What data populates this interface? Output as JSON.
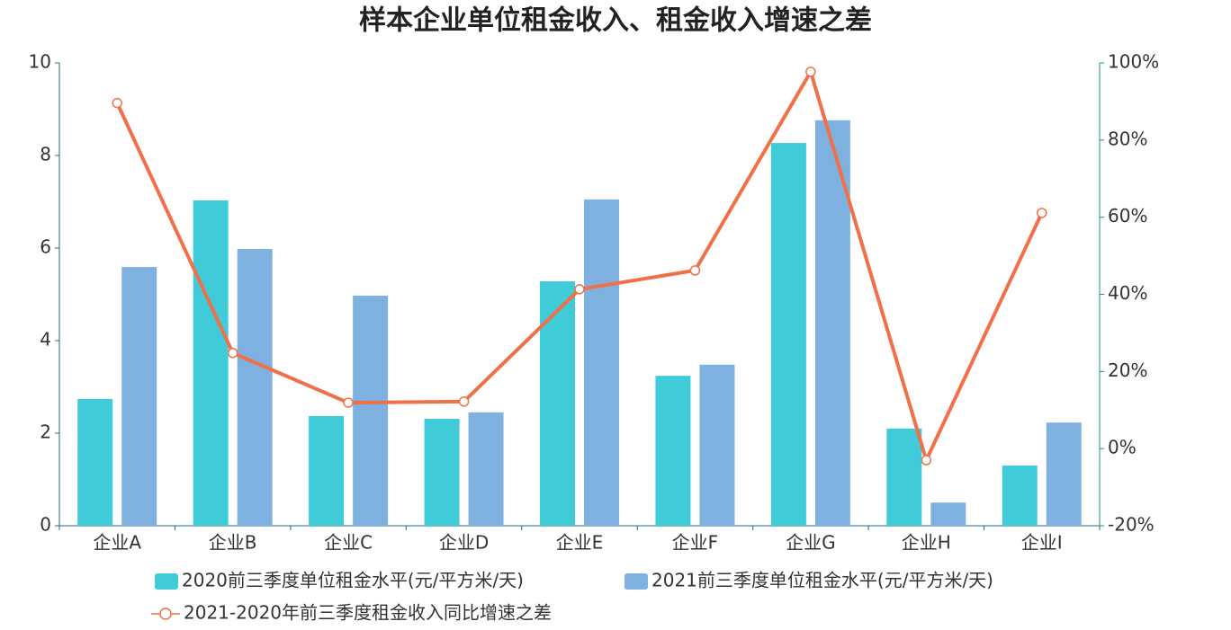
{
  "chart_data": {
    "type": "bar-line",
    "title": "样本企业单位租金收入、租金收入增速之差",
    "categories": [
      "企业A",
      "企业B",
      "企业C",
      "企业D",
      "企业E",
      "企业F",
      "企业G",
      "企业H",
      "企业I"
    ],
    "series": [
      {
        "name": "2020前三季度单位租金水平(元/平方米/天)",
        "color": "#40cbd8",
        "type": "bar",
        "values": [
          2.74,
          7.03,
          2.37,
          2.31,
          5.28,
          3.24,
          8.27,
          2.1,
          1.3
        ]
      },
      {
        "name": "2021前三季度单位租金水平(元/平方米/天)",
        "color": "#7fb1e0",
        "type": "bar",
        "values": [
          5.59,
          5.98,
          4.97,
          2.45,
          7.05,
          3.48,
          8.76,
          0.5,
          2.23
        ]
      },
      {
        "name": "2021-2020年前三季度租金收入同比增速之差",
        "color": "#ef7049",
        "type": "line",
        "axis": "y2",
        "values": [
          89.6,
          24.8,
          11.9,
          12.2,
          41.3,
          46.2,
          97.7,
          -3.0,
          61.1
        ]
      }
    ],
    "ylim": [
      0,
      10
    ],
    "yticks": [
      0,
      2,
      4,
      6,
      8,
      10
    ],
    "y2lim": [
      -20,
      100
    ],
    "y2ticks": [
      {
        "value": -20,
        "label": "-20%"
      },
      {
        "value": 0,
        "label": "0%"
      },
      {
        "value": 20,
        "label": "20%"
      },
      {
        "value": 40,
        "label": "40%"
      },
      {
        "value": 60,
        "label": "60%"
      },
      {
        "value": 80,
        "label": "80%"
      },
      {
        "value": 100,
        "label": "100%"
      }
    ]
  }
}
